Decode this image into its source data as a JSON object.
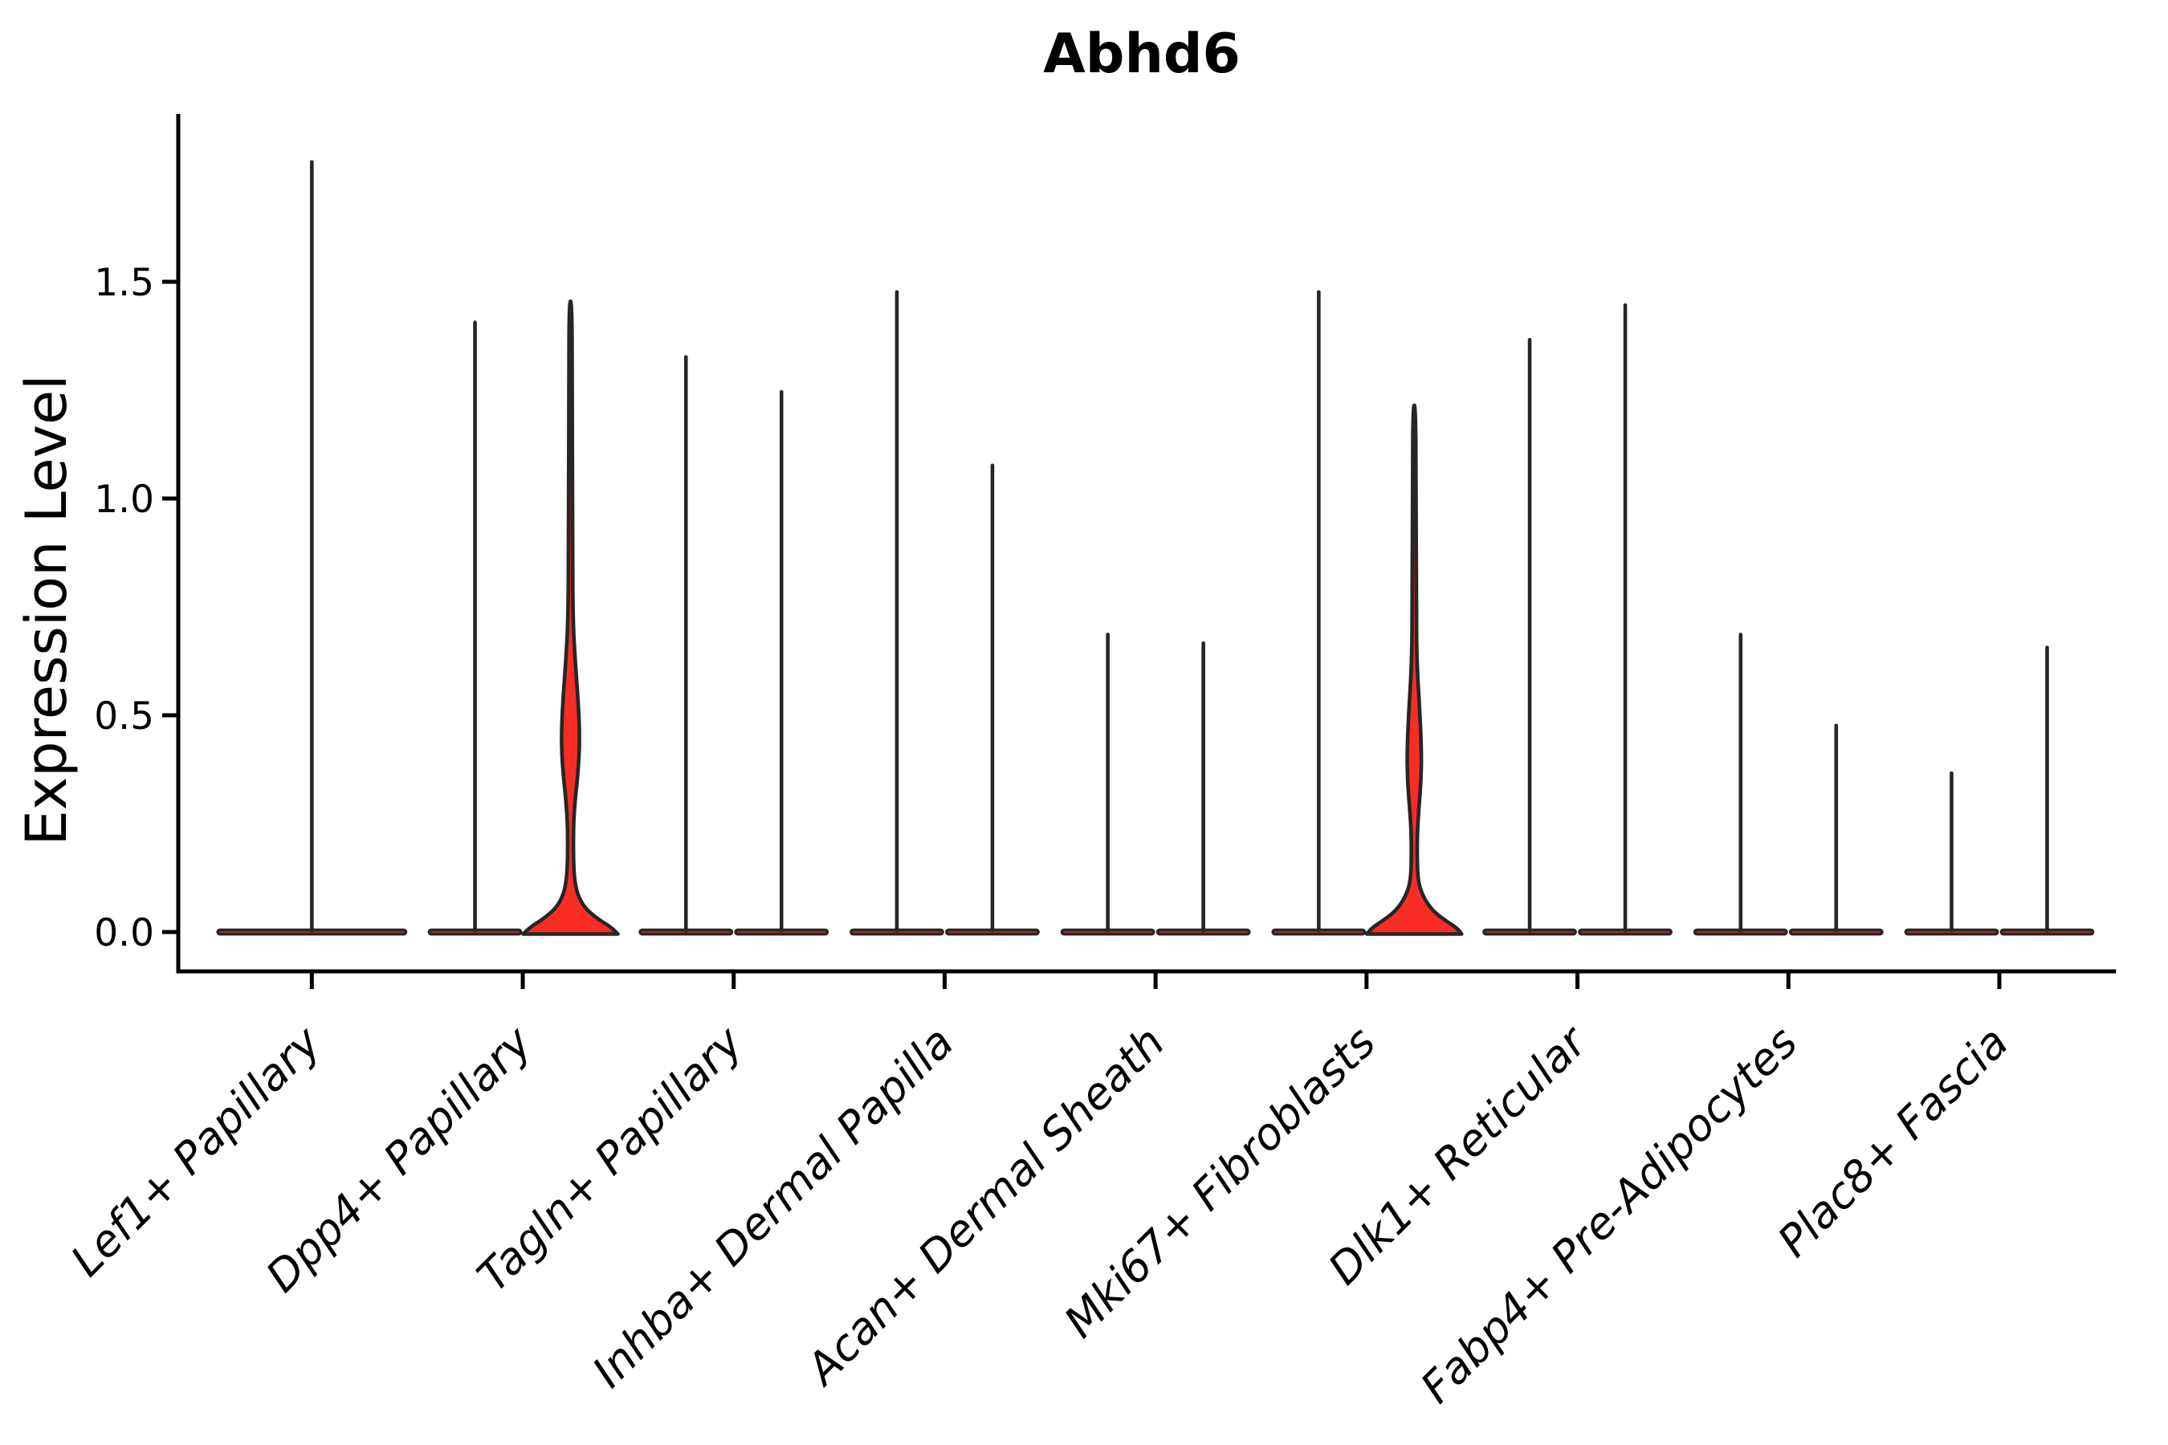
{
  "title": "Abhd6",
  "y_axis": {
    "label": "Expression Level",
    "tick_labels": [
      "0.0",
      "0.5",
      "1.0",
      "1.5"
    ],
    "tick_values": [
      0.0,
      0.5,
      1.0,
      1.5
    ]
  },
  "x_axis": {
    "tick_labels": [
      "Lef1+ Papillary",
      "Dpp4+ Papillary",
      "Tagln+ Papillary",
      "Inhba+ Dermal Papilla",
      "Acan+ Dermal Sheath",
      "Mki67+ Fibroblasts",
      "Dlk1+ Reticular",
      "Fabp4+ Pre-Adipocytes",
      "Plac8+ Fascia"
    ]
  },
  "colors": {
    "violin_fill": "#F92D24",
    "violin_stroke": "#262626",
    "axis": "#000000"
  },
  "chart_data": {
    "type": "violin",
    "title": "Abhd6",
    "xlabel": "",
    "ylabel": "Expression Level",
    "ylim": [
      0,
      1.887
    ],
    "y_ticks": [
      0.0,
      0.5,
      1.0,
      1.5
    ],
    "grid": false,
    "legend": "none",
    "categories": [
      "Lef1+ Papillary",
      "Dpp4+ Papillary",
      "Tagln+ Papillary",
      "Inhba+ Dermal Papilla",
      "Acan+ Dermal Sheath",
      "Mki67+ Fibroblasts",
      "Dlk1+ Reticular",
      "Fabp4+ Pre-Adipocytes",
      "Plac8+ Fascia"
    ],
    "description": "Most violins collapse to a flat bar at 0 with a thin spike to the maximum expression value; two violins (Dpp4+ Papillary right, Mki67+ Fibroblasts right) have visible red density bulges.",
    "violins": [
      {
        "category": "Lef1+ Papillary",
        "group": 0,
        "position": "center",
        "max": 1.78,
        "profile": null
      },
      {
        "category": "Dpp4+ Papillary",
        "group": 1,
        "position": "left",
        "max": 1.41,
        "profile": null
      },
      {
        "category": "Dpp4+ Papillary",
        "group": 1,
        "position": "right",
        "max": 1.46,
        "profile": [
          [
            1.455,
            1.5
          ],
          [
            1.3,
            2.2
          ],
          [
            0.9,
            2.4
          ],
          [
            0.72,
            3.0
          ],
          [
            0.62,
            6.0
          ],
          [
            0.52,
            10.0
          ],
          [
            0.44,
            11.5
          ],
          [
            0.37,
            9.5
          ],
          [
            0.31,
            6.0
          ],
          [
            0.26,
            4.0
          ],
          [
            0.21,
            3.5
          ],
          [
            0.16,
            3.8
          ],
          [
            0.12,
            5.0
          ],
          [
            0.085,
            9.0
          ],
          [
            0.055,
            18.0
          ],
          [
            0.03,
            34.0
          ],
          [
            0.012,
            50.0
          ],
          [
            0.0,
            59.0
          ]
        ]
      },
      {
        "category": "Tagln+ Papillary",
        "group": 2,
        "position": "left",
        "max": 1.33,
        "profile": null
      },
      {
        "category": "Tagln+ Papillary",
        "group": 2,
        "position": "right",
        "max": 1.25,
        "profile": null
      },
      {
        "category": "Inhba+ Dermal Papilla",
        "group": 3,
        "position": "left",
        "max": 1.48,
        "profile": null
      },
      {
        "category": "Inhba+ Dermal Papilla",
        "group": 3,
        "position": "right",
        "max": 1.08,
        "profile": null
      },
      {
        "category": "Acan+ Dermal Sheath",
        "group": 4,
        "position": "left",
        "max": 0.69,
        "profile": null
      },
      {
        "category": "Acan+ Dermal Sheath",
        "group": 4,
        "position": "right",
        "max": 0.67,
        "profile": null
      },
      {
        "category": "Mki67+ Fibroblasts",
        "group": 5,
        "position": "left",
        "max": 1.48,
        "profile": null
      },
      {
        "category": "Mki67+ Fibroblasts",
        "group": 5,
        "position": "right",
        "max": 1.22,
        "profile": [
          [
            1.215,
            1.5
          ],
          [
            1.05,
            2.2
          ],
          [
            0.75,
            2.4
          ],
          [
            0.62,
            3.2
          ],
          [
            0.52,
            6.5
          ],
          [
            0.42,
            9.0
          ],
          [
            0.35,
            8.5
          ],
          [
            0.28,
            5.5
          ],
          [
            0.23,
            3.8
          ],
          [
            0.17,
            3.6
          ],
          [
            0.12,
            4.5
          ],
          [
            0.085,
            10.0
          ],
          [
            0.05,
            22.0
          ],
          [
            0.025,
            40.0
          ],
          [
            0.008,
            54.0
          ],
          [
            0.0,
            59.0
          ]
        ]
      },
      {
        "category": "Dlk1+ Reticular",
        "group": 6,
        "position": "left",
        "max": 1.37,
        "profile": null
      },
      {
        "category": "Dlk1+ Reticular",
        "group": 6,
        "position": "right",
        "max": 1.45,
        "profile": null
      },
      {
        "category": "Fabp4+ Pre-Adipocytes",
        "group": 7,
        "position": "left",
        "max": 0.69,
        "profile": null
      },
      {
        "category": "Fabp4+ Pre-Adipocytes",
        "group": 7,
        "position": "right",
        "max": 0.48,
        "profile": null
      },
      {
        "category": "Plac8+ Fascia",
        "group": 8,
        "position": "left",
        "max": 0.37,
        "profile": null
      },
      {
        "category": "Plac8+ Fascia",
        "group": 8,
        "position": "right",
        "max": 0.66,
        "profile": null
      }
    ]
  }
}
